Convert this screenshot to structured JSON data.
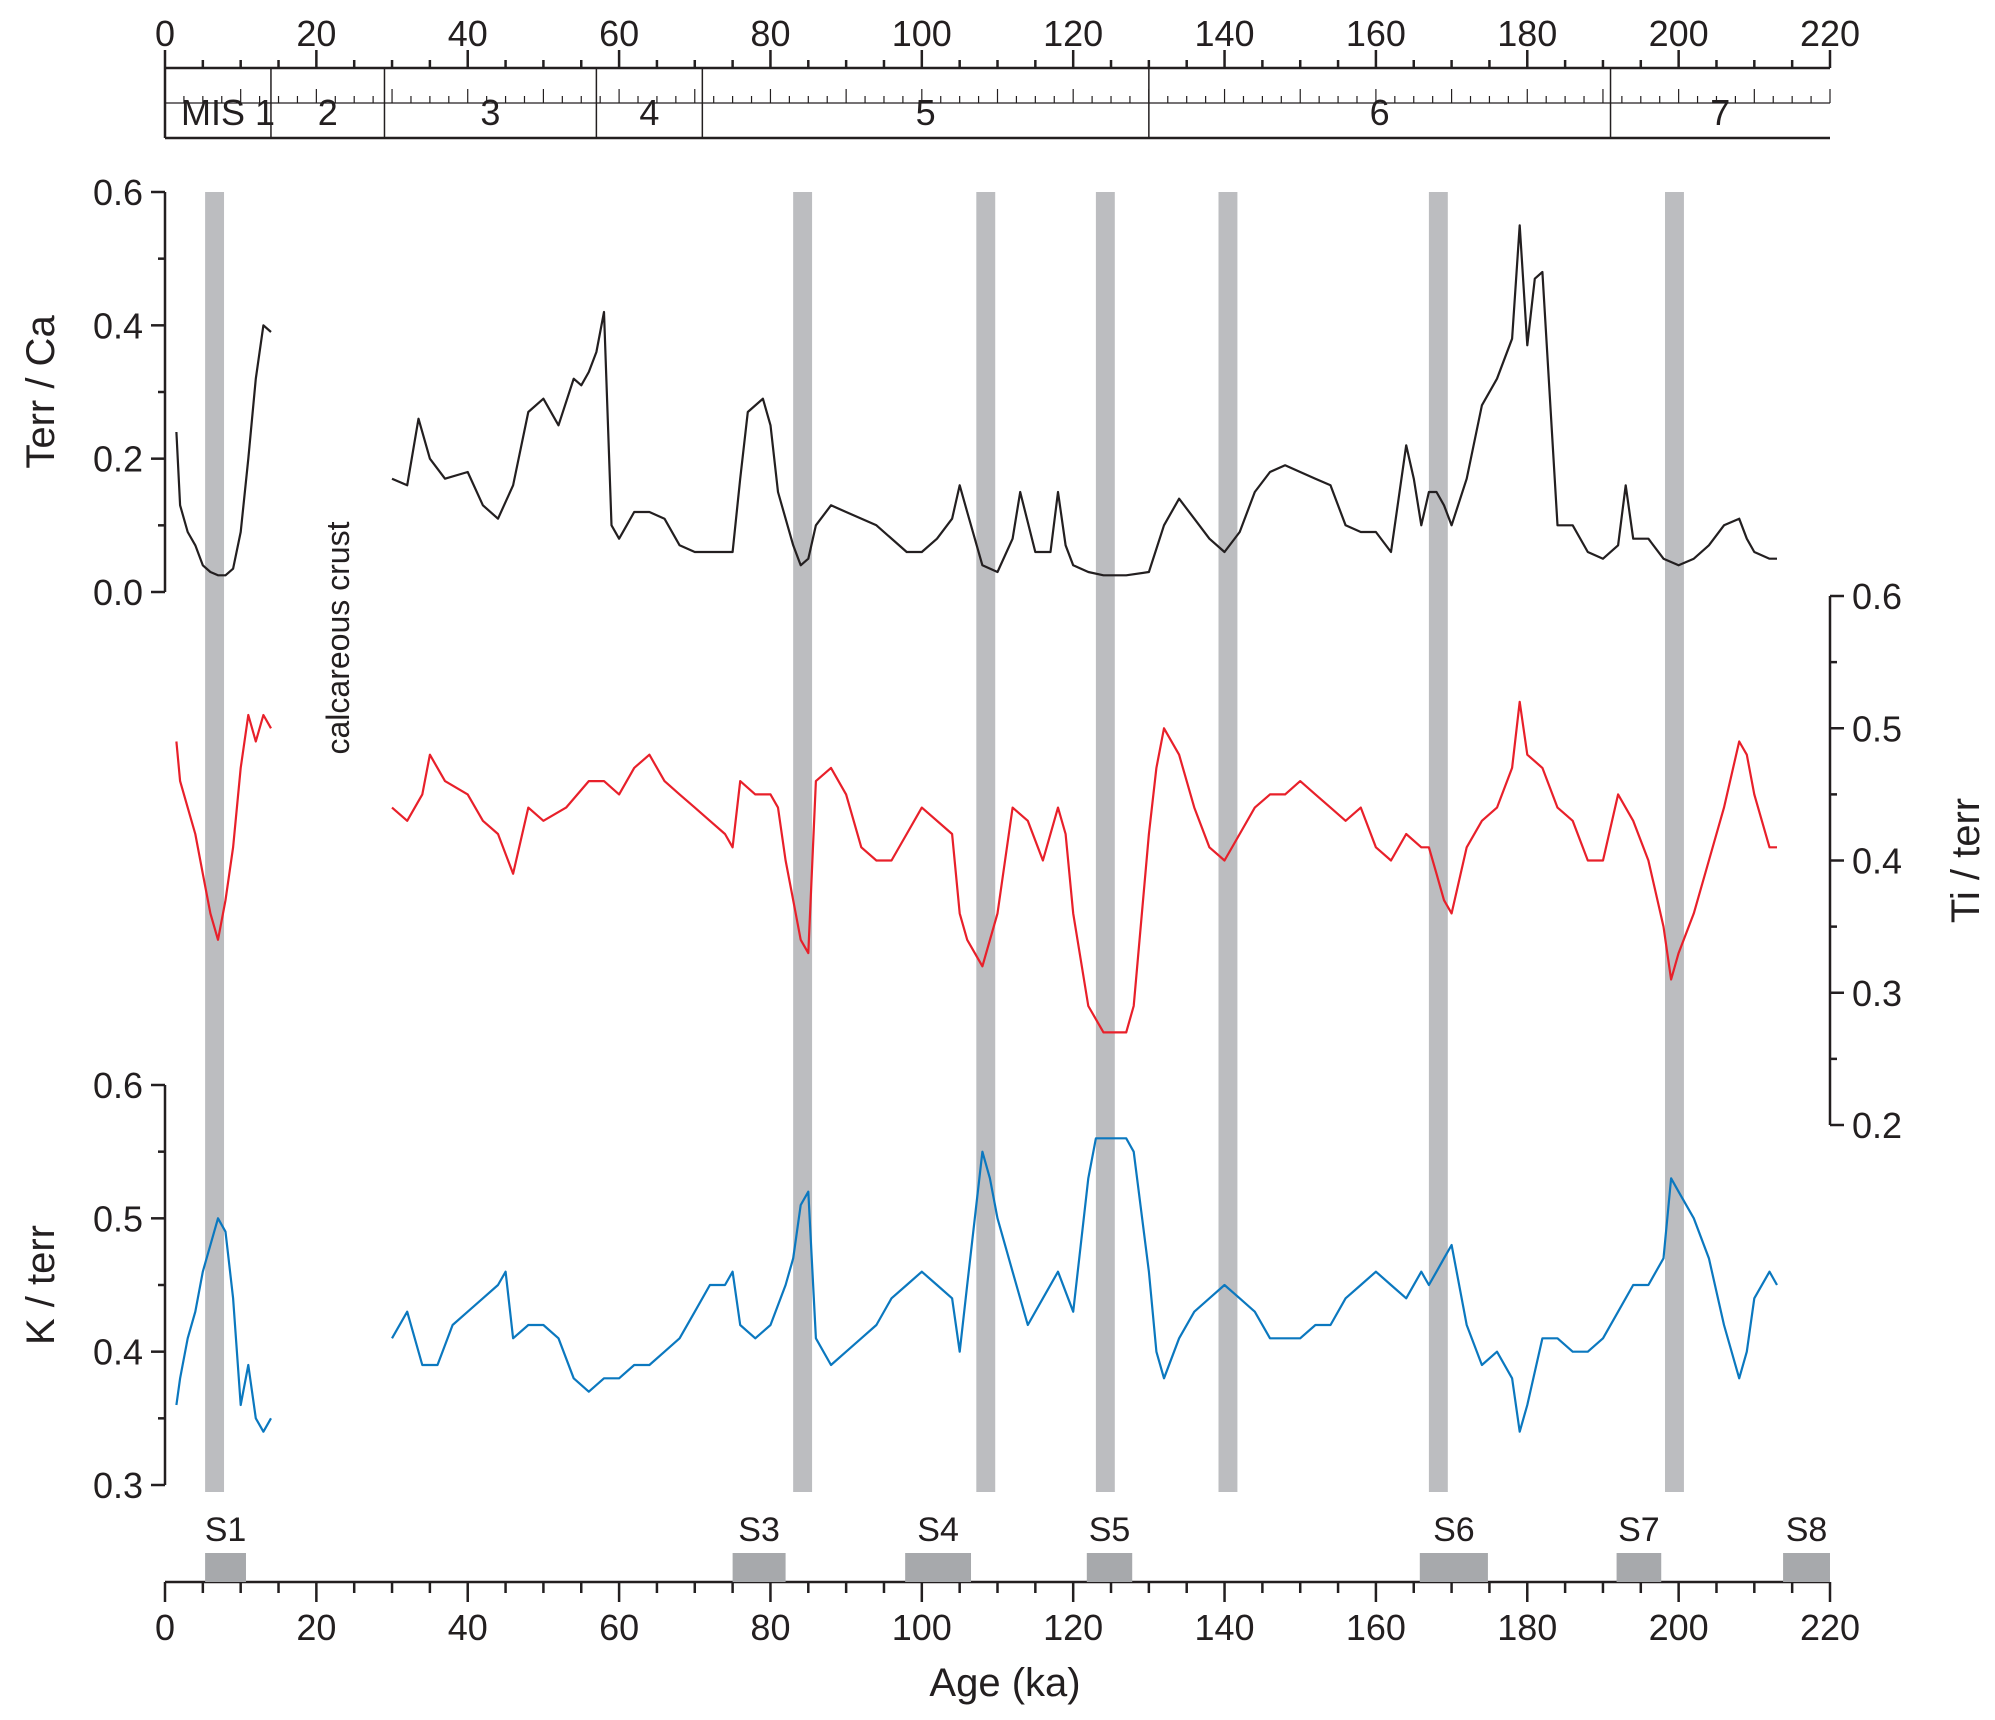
{
  "chart_data": {
    "type": "line",
    "x_label": "Age (ka)",
    "x_range": [
      0,
      220
    ],
    "x_ticks": [
      0,
      20,
      40,
      60,
      80,
      100,
      120,
      140,
      160,
      180,
      200,
      220
    ],
    "mis": {
      "prefix": "MIS",
      "stages": [
        {
          "label": "1",
          "start": 0,
          "end": 14
        },
        {
          "label": "2",
          "start": 14,
          "end": 29
        },
        {
          "label": "3",
          "start": 29,
          "end": 57
        },
        {
          "label": "4",
          "start": 57,
          "end": 71
        },
        {
          "label": "5",
          "start": 71,
          "end": 130
        },
        {
          "label": "6",
          "start": 130,
          "end": 191
        },
        {
          "label": "7",
          "start": 191,
          "end": 220
        }
      ]
    },
    "annotation": "calcareous crust",
    "grey_bands": [
      [
        5.3,
        7.8
      ],
      [
        83.0,
        85.5
      ],
      [
        107.2,
        109.7
      ],
      [
        123.0,
        125.5
      ],
      [
        139.2,
        141.7
      ],
      [
        167.0,
        169.5
      ],
      [
        198.2,
        200.7
      ]
    ],
    "sapropels": [
      {
        "label": "S1",
        "start": 5.3,
        "end": 10.7
      },
      {
        "label": "S3",
        "start": 75.0,
        "end": 82.0
      },
      {
        "label": "S4",
        "start": 97.8,
        "end": 106.5
      },
      {
        "label": "S5",
        "start": 121.8,
        "end": 127.8
      },
      {
        "label": "S6",
        "start": 165.8,
        "end": 174.8
      },
      {
        "label": "S7",
        "start": 191.8,
        "end": 197.7
      },
      {
        "label": "S8",
        "start": 213.8,
        "end": 220.0
      }
    ],
    "series": [
      {
        "label": "Terr / Ca",
        "color": "#231f20",
        "axis_side": "left",
        "ylim": [
          0.0,
          0.6
        ],
        "yticks": [
          "0.0",
          "0.2",
          "0.4",
          "0.6"
        ],
        "x": [
          1.5,
          2,
          3,
          4,
          5,
          6,
          7,
          8,
          9,
          10,
          11,
          12,
          13,
          14,
          30,
          32,
          33.5,
          35,
          37,
          40,
          42,
          44,
          46,
          48,
          50,
          52,
          54,
          55,
          56,
          57,
          58,
          59,
          60,
          61,
          62,
          64,
          66,
          68,
          70,
          72,
          75,
          76,
          77,
          79,
          80,
          81,
          83,
          84,
          85,
          86,
          88,
          90,
          94,
          98,
          100,
          102,
          104,
          105,
          106,
          108,
          110,
          112,
          113,
          115,
          117,
          118,
          119,
          120,
          122,
          124,
          127,
          130,
          132,
          134,
          136,
          138,
          140,
          142,
          144,
          146,
          148,
          150,
          152,
          154,
          156,
          158,
          160,
          162,
          163,
          164,
          165,
          166,
          167,
          168,
          169,
          170,
          172,
          174,
          176,
          178,
          179,
          180,
          181,
          182,
          184,
          186,
          188,
          190,
          192,
          193,
          194,
          196,
          198,
          200,
          202,
          204,
          206,
          208,
          209,
          210,
          212,
          213
        ],
        "y": [
          0.24,
          0.13,
          0.09,
          0.07,
          0.04,
          0.03,
          0.025,
          0.025,
          0.035,
          0.09,
          0.2,
          0.32,
          0.4,
          0.39,
          0.17,
          0.16,
          0.26,
          0.2,
          0.17,
          0.18,
          0.13,
          0.11,
          0.16,
          0.27,
          0.29,
          0.25,
          0.32,
          0.31,
          0.33,
          0.36,
          0.42,
          0.1,
          0.08,
          0.1,
          0.12,
          0.12,
          0.11,
          0.07,
          0.06,
          0.06,
          0.06,
          0.17,
          0.27,
          0.29,
          0.25,
          0.15,
          0.07,
          0.04,
          0.05,
          0.1,
          0.13,
          0.12,
          0.1,
          0.06,
          0.06,
          0.08,
          0.11,
          0.16,
          0.12,
          0.04,
          0.03,
          0.08,
          0.15,
          0.06,
          0.06,
          0.15,
          0.07,
          0.04,
          0.03,
          0.025,
          0.025,
          0.03,
          0.1,
          0.14,
          0.11,
          0.08,
          0.06,
          0.09,
          0.15,
          0.18,
          0.19,
          0.18,
          0.17,
          0.16,
          0.1,
          0.09,
          0.09,
          0.06,
          0.14,
          0.22,
          0.17,
          0.1,
          0.15,
          0.15,
          0.13,
          0.1,
          0.17,
          0.28,
          0.32,
          0.38,
          0.55,
          0.37,
          0.47,
          0.48,
          0.1,
          0.1,
          0.06,
          0.05,
          0.07,
          0.16,
          0.08,
          0.08,
          0.05,
          0.04,
          0.05,
          0.07,
          0.1,
          0.11,
          0.08,
          0.06,
          0.05,
          0.05
        ]
      },
      {
        "label": "Ti / terr",
        "color": "#e8202a",
        "axis_side": "right",
        "ylim": [
          0.2,
          0.6
        ],
        "yticks": [
          "0.2",
          "0.3",
          "0.4",
          "0.5",
          "0.6"
        ],
        "x": [
          1.5,
          2,
          3,
          4,
          5,
          6,
          7,
          8,
          9,
          10,
          11,
          12,
          13,
          14,
          30,
          32,
          34,
          35,
          37,
          40,
          42,
          44,
          46,
          48,
          50,
          53,
          56,
          58,
          60,
          62,
          64,
          66,
          68,
          70,
          72,
          74,
          75,
          76,
          78,
          80,
          81,
          82,
          83,
          84,
          85,
          86,
          88,
          90,
          92,
          94,
          96,
          98,
          100,
          104,
          105,
          106,
          108,
          110,
          112,
          114,
          116,
          118,
          119,
          120,
          122,
          124,
          126,
          127,
          128,
          130,
          131,
          132,
          134,
          136,
          138,
          140,
          142,
          144,
          146,
          148,
          150,
          152,
          154,
          156,
          158,
          160,
          162,
          164,
          166,
          167,
          168,
          169,
          170,
          172,
          174,
          176,
          178,
          179,
          180,
          182,
          184,
          186,
          188,
          190,
          192,
          194,
          196,
          198,
          199,
          200,
          202,
          204,
          206,
          208,
          209,
          210,
          212,
          213
        ],
        "y": [
          0.49,
          0.46,
          0.44,
          0.42,
          0.39,
          0.36,
          0.34,
          0.37,
          0.41,
          0.47,
          0.51,
          0.49,
          0.51,
          0.5,
          0.44,
          0.43,
          0.45,
          0.48,
          0.46,
          0.45,
          0.43,
          0.42,
          0.39,
          0.44,
          0.43,
          0.44,
          0.46,
          0.46,
          0.45,
          0.47,
          0.48,
          0.46,
          0.45,
          0.44,
          0.43,
          0.42,
          0.41,
          0.46,
          0.45,
          0.45,
          0.44,
          0.4,
          0.37,
          0.34,
          0.33,
          0.46,
          0.47,
          0.45,
          0.41,
          0.4,
          0.4,
          0.42,
          0.44,
          0.42,
          0.36,
          0.34,
          0.32,
          0.36,
          0.44,
          0.43,
          0.4,
          0.44,
          0.42,
          0.36,
          0.29,
          0.27,
          0.27,
          0.27,
          0.29,
          0.42,
          0.47,
          0.5,
          0.48,
          0.44,
          0.41,
          0.4,
          0.42,
          0.44,
          0.45,
          0.45,
          0.46,
          0.45,
          0.44,
          0.43,
          0.44,
          0.41,
          0.4,
          0.42,
          0.41,
          0.41,
          0.39,
          0.37,
          0.36,
          0.41,
          0.43,
          0.44,
          0.47,
          0.52,
          0.48,
          0.47,
          0.44,
          0.43,
          0.4,
          0.4,
          0.45,
          0.43,
          0.4,
          0.35,
          0.31,
          0.33,
          0.36,
          0.4,
          0.44,
          0.49,
          0.48,
          0.45,
          0.41,
          0.41
        ]
      },
      {
        "label": "K / terr",
        "color": "#0b78bf",
        "axis_side": "left",
        "ylim": [
          0.3,
          0.6
        ],
        "yticks": [
          "0.3",
          "0.4",
          "0.5",
          "0.6"
        ],
        "x": [
          1.5,
          2,
          3,
          4,
          5,
          6,
          7,
          8,
          9,
          10,
          11,
          12,
          13,
          14,
          30,
          32,
          34,
          36,
          38,
          40,
          42,
          44,
          45,
          46,
          48,
          50,
          52,
          54,
          56,
          58,
          60,
          62,
          64,
          66,
          68,
          70,
          72,
          74,
          75,
          76,
          78,
          80,
          82,
          83,
          84,
          85,
          86,
          88,
          90,
          92,
          94,
          96,
          98,
          100,
          102,
          104,
          105,
          106,
          107,
          108,
          109,
          110,
          112,
          114,
          116,
          118,
          120,
          122,
          123,
          124,
          126,
          127,
          128,
          130,
          131,
          132,
          134,
          136,
          138,
          140,
          142,
          144,
          146,
          148,
          150,
          152,
          154,
          156,
          158,
          160,
          162,
          164,
          166,
          167,
          168,
          169,
          170,
          172,
          174,
          176,
          178,
          179,
          180,
          182,
          184,
          186,
          188,
          190,
          192,
          194,
          196,
          198,
          199,
          200,
          202,
          204,
          206,
          208,
          209,
          210,
          212,
          213
        ],
        "y": [
          0.36,
          0.38,
          0.41,
          0.43,
          0.46,
          0.48,
          0.5,
          0.49,
          0.44,
          0.36,
          0.39,
          0.35,
          0.34,
          0.35,
          0.41,
          0.43,
          0.39,
          0.39,
          0.42,
          0.43,
          0.44,
          0.45,
          0.46,
          0.41,
          0.42,
          0.42,
          0.41,
          0.38,
          0.37,
          0.38,
          0.38,
          0.39,
          0.39,
          0.4,
          0.41,
          0.43,
          0.45,
          0.45,
          0.46,
          0.42,
          0.41,
          0.42,
          0.45,
          0.47,
          0.51,
          0.52,
          0.41,
          0.39,
          0.4,
          0.41,
          0.42,
          0.44,
          0.45,
          0.46,
          0.45,
          0.44,
          0.4,
          0.45,
          0.5,
          0.55,
          0.53,
          0.5,
          0.46,
          0.42,
          0.44,
          0.46,
          0.43,
          0.53,
          0.56,
          0.56,
          0.56,
          0.56,
          0.55,
          0.46,
          0.4,
          0.38,
          0.41,
          0.43,
          0.44,
          0.45,
          0.44,
          0.43,
          0.41,
          0.41,
          0.41,
          0.42,
          0.42,
          0.44,
          0.45,
          0.46,
          0.45,
          0.44,
          0.46,
          0.45,
          0.46,
          0.47,
          0.48,
          0.42,
          0.39,
          0.4,
          0.38,
          0.34,
          0.36,
          0.41,
          0.41,
          0.4,
          0.4,
          0.41,
          0.43,
          0.45,
          0.45,
          0.47,
          0.53,
          0.52,
          0.5,
          0.47,
          0.42,
          0.38,
          0.4,
          0.44,
          0.46,
          0.45
        ]
      }
    ]
  }
}
